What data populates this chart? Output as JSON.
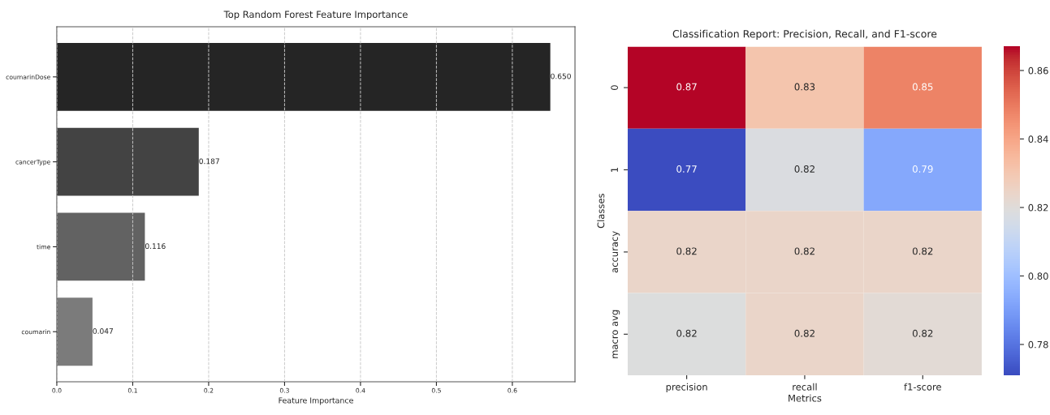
{
  "chart_data": [
    {
      "type": "bar",
      "orientation": "horizontal",
      "title": "Top Random Forest Feature Importance",
      "xlabel": "Feature Importance",
      "categories": [
        "coumarinDose",
        "cancerType",
        "time",
        "coumarin"
      ],
      "values": [
        0.65,
        0.187,
        0.116,
        0.047
      ],
      "colors": [
        "#252525",
        "#434343",
        "#626262",
        "#7b7b7b"
      ],
      "value_labels": [
        "0.650",
        "0.187",
        "0.116",
        "0.047"
      ],
      "xlim": [
        0,
        0.6825
      ],
      "xticks": [
        {
          "value": 0,
          "label": "0.0"
        },
        {
          "value": 0.1,
          "label": "0.1"
        },
        {
          "value": 0.2,
          "label": "0.2"
        },
        {
          "value": 0.3,
          "label": "0.3"
        },
        {
          "value": 0.4,
          "label": "0.4"
        },
        {
          "value": 0.5,
          "label": "0.5"
        },
        {
          "value": 0.6,
          "label": "0.6"
        }
      ],
      "grid": "x"
    },
    {
      "type": "heatmap",
      "title": "Classification Report: Precision, Recall, and F1-score",
      "xlabel": "Metrics",
      "ylabel": "Classes",
      "categories": [
        "precision",
        "recall",
        "f1-score"
      ],
      "y_categories": [
        "0",
        "1",
        "accuracy",
        "macro avg"
      ],
      "cells": [
        [
          0.867,
          0.831,
          0.848
        ],
        [
          0.771,
          0.818,
          0.793
        ],
        [
          0.824,
          0.824,
          0.824
        ],
        [
          0.819,
          0.824,
          0.821
        ]
      ],
      "cell_labels": [
        [
          "0.87",
          "0.83",
          "0.85"
        ],
        [
          "0.77",
          "0.82",
          "0.79"
        ],
        [
          "0.82",
          "0.82",
          "0.82"
        ],
        [
          "0.82",
          "0.82",
          "0.82"
        ]
      ],
      "clim": [
        0.771,
        0.867
      ],
      "cticks": [
        0.78,
        {
          "value": 0.8,
          "label": "0.80"
        },
        0.82,
        0.84,
        0.86
      ]
    }
  ]
}
